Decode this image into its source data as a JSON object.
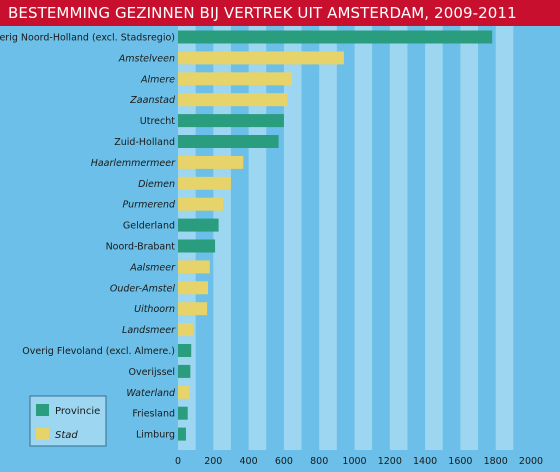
{
  "title": "BESTEMMING GEZINNEN BIJ VERTREK UIT AMSTERDAM, 2009-2011",
  "colors": {
    "background": "#6bbfe8",
    "band_light": "#9dd6f1",
    "title_bg": "#c8102e",
    "provincie": "#2a9d7e",
    "stad": "#e6d36a"
  },
  "chart_data": {
    "type": "bar",
    "orientation": "horizontal",
    "title": "BESTEMMING GEZINNEN BIJ VERTREK UIT AMSTERDAM, 2009-2011",
    "xlim": [
      0,
      2000
    ],
    "x_ticks": [
      "0",
      "200",
      "400",
      "600",
      "800",
      "1000",
      "1200",
      "1400",
      "1600",
      "1800",
      "2000"
    ],
    "legend": {
      "placement": "bottom-left",
      "items": [
        {
          "label": "Provincie",
          "key": "provincie"
        },
        {
          "label": "Stad",
          "key": "stad"
        }
      ]
    },
    "bars": [
      {
        "label": "overig Noord-Holland (excl. Stadsregio)",
        "value": 1780,
        "type": "provincie"
      },
      {
        "label": "Amstelveen",
        "value": 940,
        "type": "stad"
      },
      {
        "label": "Almere",
        "value": 645,
        "type": "stad"
      },
      {
        "label": "Zaanstad",
        "value": 620,
        "type": "stad"
      },
      {
        "label": "Utrecht",
        "value": 600,
        "type": "provincie"
      },
      {
        "label": "Zuid-Holland",
        "value": 570,
        "type": "provincie"
      },
      {
        "label": "Haarlemmermeer",
        "value": 370,
        "type": "stad"
      },
      {
        "label": "Diemen",
        "value": 300,
        "type": "stad"
      },
      {
        "label": "Purmerend",
        "value": 255,
        "type": "stad"
      },
      {
        "label": "Gelderland",
        "value": 230,
        "type": "provincie"
      },
      {
        "label": "Noord-Brabant",
        "value": 210,
        "type": "provincie"
      },
      {
        "label": "Aalsmeer",
        "value": 180,
        "type": "stad"
      },
      {
        "label": "Ouder-Amstel",
        "value": 170,
        "type": "stad"
      },
      {
        "label": "Uithoorn",
        "value": 165,
        "type": "stad"
      },
      {
        "label": "Landsmeer",
        "value": 85,
        "type": "stad"
      },
      {
        "label": "Overig Flevoland (excl. Almere.)",
        "value": 75,
        "type": "provincie"
      },
      {
        "label": "Overijssel",
        "value": 70,
        "type": "provincie"
      },
      {
        "label": "Waterland",
        "value": 65,
        "type": "stad"
      },
      {
        "label": "Friesland",
        "value": 55,
        "type": "provincie"
      },
      {
        "label": "Limburg",
        "value": 45,
        "type": "provincie"
      }
    ]
  }
}
